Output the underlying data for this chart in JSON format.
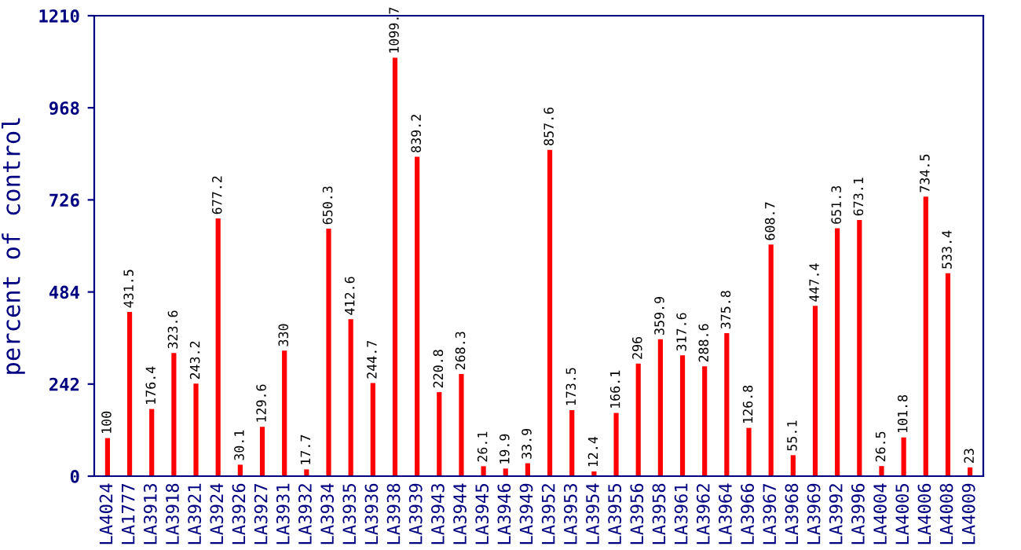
{
  "chart_data": {
    "type": "bar",
    "ylabel": "percent of control",
    "categories": [
      "LA4024",
      "LA1777",
      "LA3913",
      "LA3918",
      "LA3921",
      "LA3924",
      "LA3926",
      "LA3927",
      "LA3931",
      "LA3932",
      "LA3934",
      "LA3935",
      "LA3936",
      "LA3938",
      "LA3939",
      "LA3943",
      "LA3944",
      "LA3945",
      "LA3946",
      "LA3949",
      "LA3952",
      "LA3953",
      "LA3954",
      "LA3955",
      "LA3956",
      "LA3958",
      "LA3961",
      "LA3962",
      "LA3964",
      "LA3966",
      "LA3967",
      "LA3968",
      "LA3969",
      "LA3992",
      "LA3996",
      "LA4004",
      "LA4005",
      "LA4006",
      "LA4008",
      "LA4009"
    ],
    "values": [
      100,
      431.5,
      176.4,
      323.6,
      243.2,
      677.2,
      30.1,
      129.6,
      330,
      17.7,
      650.3,
      412.6,
      244.7,
      1099.7,
      839.2,
      220.8,
      268.3,
      26.1,
      19.9,
      33.9,
      857.6,
      173.5,
      12.4,
      166.1,
      296,
      359.9,
      317.6,
      288.6,
      375.8,
      126.8,
      608.7,
      55.1,
      447.4,
      651.3,
      673.1,
      26.5,
      101.8,
      734.5,
      533.4,
      23
    ],
    "color": "#ff0000",
    "ylim": [
      0,
      1210
    ],
    "yticks": [
      0,
      242,
      484,
      726,
      968,
      1210
    ],
    "data_labels": true,
    "grid": false,
    "legend": false
  }
}
